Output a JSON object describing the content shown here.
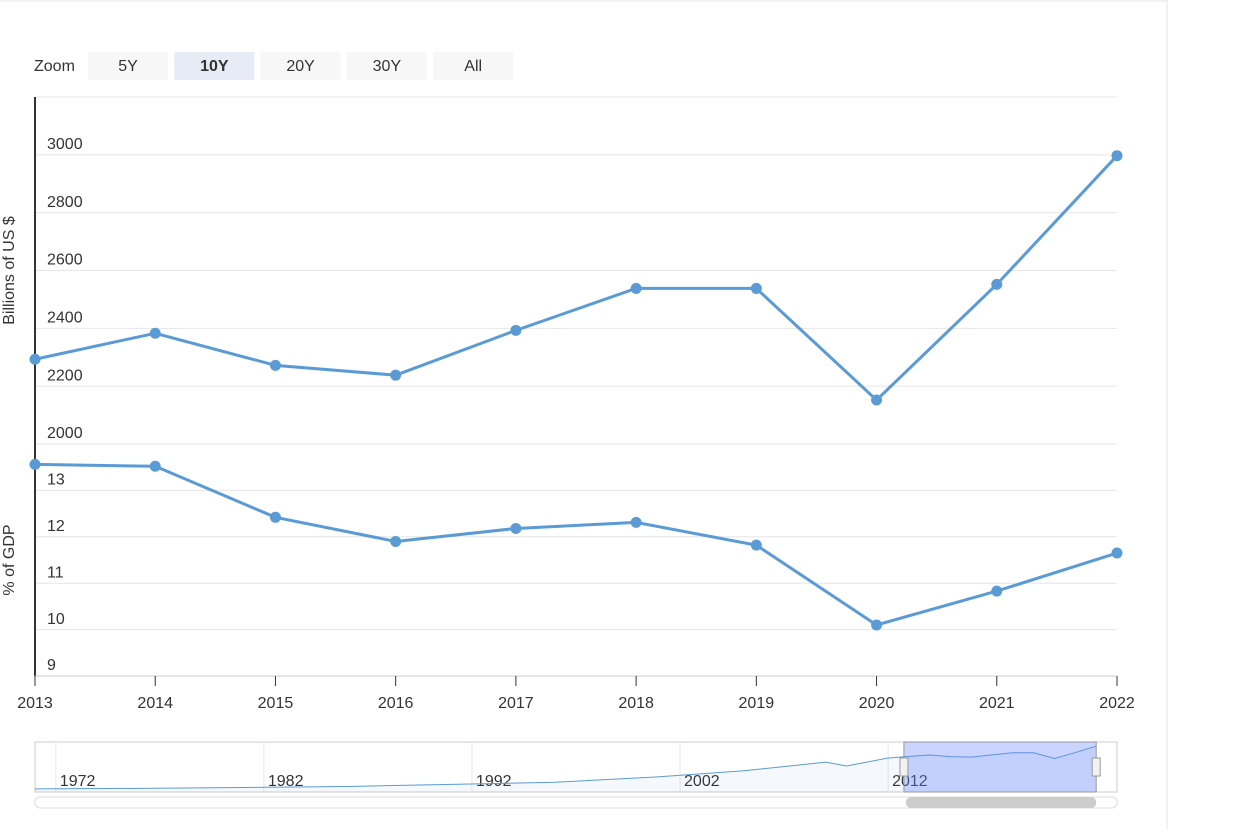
{
  "chart_data": {
    "type": "line",
    "range_selector": {
      "label": "Zoom",
      "buttons": [
        "5Y",
        "10Y",
        "20Y",
        "30Y",
        "All"
      ],
      "selected": 1
    },
    "ylabel": "Billions of US $",
    "y2label": "% of GDP",
    "x": [
      2013,
      2014,
      2015,
      2016,
      2017,
      2018,
      2019,
      2020,
      2021,
      2022
    ],
    "xlim": [
      2013,
      2022
    ],
    "xticks": [
      2013,
      2014,
      2015,
      2016,
      2017,
      2018,
      2019,
      2020,
      2021,
      2022
    ],
    "ylim": [
      2000,
      3200
    ],
    "yticks": [
      2000,
      2200,
      2400,
      2600,
      2800,
      3000
    ],
    "y2lim": [
      9,
      14
    ],
    "y2ticks": [
      9,
      10,
      11,
      12,
      13
    ],
    "grid": true,
    "series": [
      {
        "color": "#5b9bd5",
        "values": [
          2293,
          2383,
          2272,
          2238,
          2393,
          2538,
          2538,
          2152,
          2552,
          2997
        ]
      },
      {
        "color": "#5b9bd5",
        "axis": "y2",
        "values": [
          13.56,
          13.52,
          12.42,
          11.9,
          12.18,
          12.31,
          11.82,
          10.1,
          10.83,
          11.65
        ]
      }
    ],
    "navigator": {
      "xlim": [
        1971,
        2023
      ],
      "ylim": [
        0,
        3000
      ],
      "xticks": [
        1972,
        1982,
        1992,
        2002,
        2012
      ],
      "selection": [
        2013,
        2022
      ],
      "color": "#5b9bd5",
      "x": [
        1971,
        1976,
        1981,
        1986,
        1991,
        1996,
        2001,
        2005,
        2008,
        2009,
        2010,
        2012,
        2013,
        2014,
        2015,
        2016,
        2017,
        2018,
        2019,
        2020,
        2021,
        2022
      ],
      "values": [
        80,
        110,
        170,
        240,
        380,
        530,
        900,
        1300,
        1750,
        1900,
        1640,
        2180,
        2293,
        2383,
        2272,
        2238,
        2393,
        2538,
        2538,
        2152,
        2552,
        2997
      ]
    }
  }
}
